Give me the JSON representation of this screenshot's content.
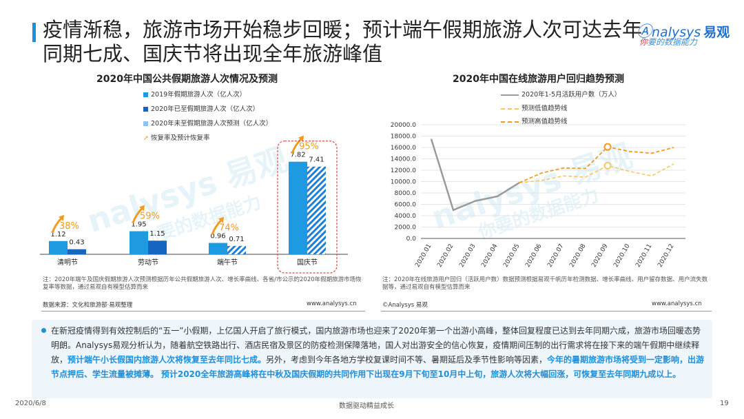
{
  "header": {
    "title": "疫情渐稳，旅游市场开始稳步回暖；预计端午假期旅游人次可达去年同期七成、国庆节将出现全年旅游峰值",
    "logo_text": "nalysys",
    "logo_cn": "易观",
    "logo_slogan_a": "你",
    "logo_slogan_b": "要的数据能力"
  },
  "watermark": {
    "brand": "nalysys 易观",
    "slogan": "你要的数据能力"
  },
  "colors": {
    "accent": "#1f8fd9",
    "bar_2019": "#1e9be0",
    "bar_2020": "#1665c0",
    "bar_forecast": "#8cc6f0",
    "arrow": "#f39a1e",
    "line_gray": "#9a9a9a",
    "line_low": "#f5c765",
    "line_high": "#f39a1e",
    "highlight_ring": "#d9473e"
  },
  "left_chart": {
    "title": "2020年中国公共假期旅游人次情况及预测",
    "legend": [
      "2019年假期旅游人次（亿人次）",
      "2020年已至假期旅游人次（亿人次）",
      "2020年未至假期旅游人次预测（亿人次）",
      "恢复率及预计恢复率"
    ],
    "note": "注：2020年端午及国庆假期旅游人次预测根据历年公共假期旅游人次、增长率曲线、各省/市公示的2020年假期旅游市场恢复率等数据，通过易观自有模型估算而来",
    "source": "数据来源：文化和旅游部·易观整理",
    "website": "www.analysys.cn"
  },
  "right_chart": {
    "title": "2020年中国在线旅游用户回归趋势预测",
    "legend": [
      "2020年1-5月活跃用户数（万人）",
      "预测低值趋势线",
      "预测高值趋势线"
    ],
    "note": "注：2020年在线旅游用户回归（活跃用户数）数据预测根据易观千帆历年检测数据、增长率曲线、用户留存数据、用户流失数据等，通过易观自有模型估算而来",
    "source": "©Analysys 易观",
    "website": "www.analysys.cn"
  },
  "chart_data": [
    {
      "type": "bar",
      "title": "2020年中国公共假期旅游人次情况及预测",
      "categories": [
        "清明节",
        "劳动节",
        "端午节",
        "国庆节"
      ],
      "series": [
        {
          "name": "2019年假期旅游人次（亿人次）",
          "values": [
            1.12,
            1.95,
            0.96,
            7.82
          ]
        },
        {
          "name": "2020年已至假期旅游人次（亿人次）",
          "values": [
            0.43,
            1.15,
            null,
            null
          ]
        },
        {
          "name": "2020年未至假期旅游人次预测（亿人次）",
          "values": [
            null,
            null,
            0.71,
            7.41
          ]
        }
      ],
      "recovery_rates": [
        "38%",
        "59%",
        "74%",
        "95%"
      ],
      "ylim": [
        0,
        8.5
      ],
      "highlight_category": "国庆节"
    },
    {
      "type": "line",
      "title": "2020年中国在线旅游用户回归趋势预测",
      "x": [
        "2020.01",
        "2020.02",
        "2020.03",
        "2020.04",
        "2020.05",
        "2020.06",
        "2020.07",
        "2020.08",
        "2020.09",
        "2020.10",
        "2020.11",
        "2020.12"
      ],
      "series": [
        {
          "name": "2020年1-5月活跃用户数（万人）",
          "values": [
            17500,
            5000,
            6600,
            7400,
            9800,
            null,
            null,
            null,
            null,
            null,
            null,
            null
          ]
        },
        {
          "name": "预测低值趋势线",
          "values": [
            null,
            null,
            null,
            null,
            9800,
            10200,
            11000,
            10800,
            12800,
            11800,
            11000,
            13100
          ]
        },
        {
          "name": "预测高值趋势线",
          "values": [
            null,
            null,
            null,
            null,
            9800,
            11500,
            12400,
            12300,
            16100,
            15300,
            15000,
            16000
          ]
        }
      ],
      "ylim": [
        0,
        20000
      ],
      "yticks": [
        "0.0",
        "2000.0",
        "4000.0",
        "6000.0",
        "8000.0",
        "10000.0",
        "12000.0",
        "14000.0",
        "16000.0",
        "18000.0",
        "20000.0"
      ],
      "highlight_x": "2020.09",
      "grid": true
    }
  ],
  "summary": {
    "p1": "在新冠疫情得到有效控制后的“五一”小假期，上亿国人开启了旅行模式，国内旅游市场也迎来了2020年第一个出游小高峰，整体回复程度已达到去年同期六成，旅游市场回暖态势明朗。Analysys易观分析认为，随着航空铁路出行、酒店民宿及景区的防疫检测保障落地，国人对出游安全的信心恢复，疫情期间压制的出行需求将在接下来的端午假期中继续释放，",
    "h1": "预计端午小长假国内旅游人次将恢复至去年同比七成。",
    "p2": "另外，考虑到今年各地方学校复课时间不等、暑期延后及季节性影响等因素，",
    "h2": "今年的暑期旅游市场将受到一定影响，出游节点押后、学生流量被摊薄。",
    "p3": " ",
    "h3": "预计2020全年旅游高峰将在中秋及国庆假期的共同作用下出现在9月下旬至10月中上旬，旅游人次将大幅回涨，可恢复至去年同期九成以上。"
  },
  "footer": {
    "date": "2020/6/8",
    "slogan": "数据驱动精益成长",
    "page": "19"
  }
}
